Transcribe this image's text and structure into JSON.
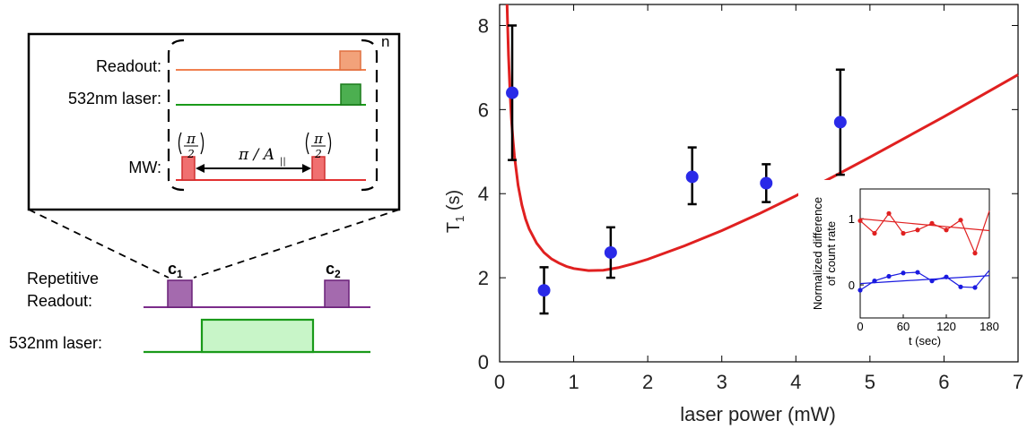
{
  "schematic": {
    "inset_labels": {
      "readout": "Readout:",
      "laser": "532nm laser:",
      "mw": "MW:",
      "repeat_n": "n",
      "pulse_fraction_num": "π",
      "pulse_fraction_den": "2",
      "delay": "π / A",
      "delay_sub": "||"
    },
    "main_labels": {
      "repetitive_line1": "Repetitive",
      "repetitive_line2": "Readout:",
      "laser": "532nm laser:",
      "c1": "c",
      "c1_sub": "1",
      "c2": "c",
      "c2_sub": "2"
    },
    "colors": {
      "readout_inset": "#f08050",
      "readout_box_inset": "#f2a27a",
      "laser": "#1a9a1a",
      "laser_box_inset": "#4caf50",
      "mw": "#e23030",
      "mw_box": "#f07070",
      "readout_main": "#7b2c8a",
      "readout_box_main": "#a46aae",
      "laser_box_main": "#c8f5c8"
    }
  },
  "chart_data": [
    {
      "type": "scatter",
      "title": "",
      "xlabel": "laser power (mW)",
      "ylabel": "T",
      "ylabel_sub": "1",
      "ylabel_unit": " (s)",
      "xlim": [
        0,
        7
      ],
      "ylim": [
        0,
        8.5
      ],
      "xticks": [
        0,
        1,
        2,
        3,
        4,
        5,
        6,
        7
      ],
      "yticks": [
        0,
        2,
        4,
        6,
        8
      ],
      "series": [
        {
          "kind": "points_with_errorbars",
          "color": "#2a2ae8",
          "x": [
            0.17,
            0.6,
            1.5,
            2.6,
            3.6,
            4.6
          ],
          "y": [
            6.4,
            1.7,
            2.6,
            4.4,
            4.25,
            5.7
          ],
          "yerr_low": [
            4.8,
            1.15,
            2.0,
            3.75,
            3.8,
            4.45
          ],
          "yerr_high": [
            8.0,
            2.25,
            3.2,
            5.1,
            4.7,
            6.95
          ]
        },
        {
          "kind": "fit_curve",
          "color": "#e02020",
          "x": [
            0.1,
            0.12,
            0.14,
            0.16,
            0.18,
            0.2,
            0.25,
            0.3,
            0.35,
            0.4,
            0.5,
            0.6,
            0.7,
            0.8,
            0.9,
            1.0,
            1.2,
            1.4,
            1.6,
            1.8,
            2.0,
            2.5,
            3.0,
            3.5,
            4.0,
            4.5,
            5.0,
            5.5,
            6.0,
            6.5,
            7.0
          ],
          "y": [
            8.56,
            7.3,
            6.42,
            5.77,
            5.28,
            4.9,
            4.2,
            3.73,
            3.4,
            3.16,
            2.82,
            2.6,
            2.45,
            2.35,
            2.27,
            2.22,
            2.17,
            2.18,
            2.24,
            2.33,
            2.44,
            2.76,
            3.12,
            3.52,
            3.95,
            4.4,
            4.87,
            5.35,
            5.83,
            6.33,
            6.83
          ]
        }
      ]
    },
    {
      "type": "line",
      "title": "",
      "xlabel": "t (sec)",
      "ylabel_line1": "Normalized difference",
      "ylabel_line2": "of count rate",
      "xlim": [
        0,
        180
      ],
      "ylim": [
        -0.5,
        1.45
      ],
      "xticks": [
        0,
        60,
        120,
        180
      ],
      "yticks": [
        0,
        1
      ],
      "series": [
        {
          "color": "#e02020",
          "x": [
            0,
            20,
            40,
            60,
            80,
            100,
            120,
            140,
            160,
            180
          ],
          "y": [
            0.97,
            0.78,
            1.08,
            0.78,
            0.83,
            0.93,
            0.83,
            0.98,
            0.48,
            1.12
          ],
          "fit": [
            1.0,
            0.82
          ]
        },
        {
          "color": "#1a1ae0",
          "x": [
            0,
            20,
            40,
            60,
            80,
            100,
            120,
            140,
            160,
            180
          ],
          "y": [
            -0.08,
            0.06,
            0.13,
            0.18,
            0.19,
            0.06,
            0.12,
            -0.03,
            -0.04,
            0.22
          ],
          "fit": [
            0.02,
            0.14
          ]
        }
      ]
    }
  ]
}
